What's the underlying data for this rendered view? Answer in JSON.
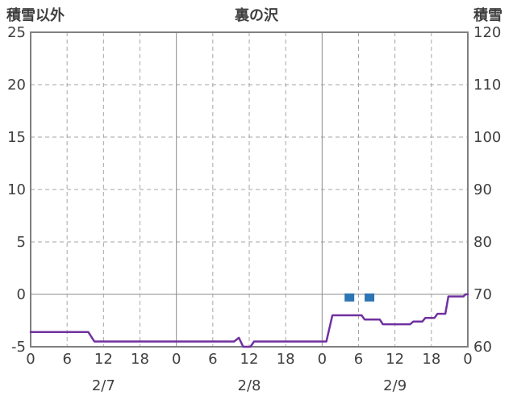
{
  "chart_data": {
    "type": "line",
    "title": "裏の沢",
    "left_axis": {
      "title": "積雪以外",
      "min": -5,
      "max": 25,
      "ticks": [
        25,
        20,
        15,
        10,
        5,
        0,
        -5
      ]
    },
    "right_axis": {
      "title": "積雪",
      "min": 60,
      "max": 120,
      "ticks": [
        120,
        110,
        100,
        90,
        80,
        70,
        60
      ]
    },
    "x_axis": {
      "total_hours": 72,
      "tick_hours": [
        0,
        6,
        12,
        18,
        24,
        30,
        36,
        42,
        48,
        54,
        60,
        66,
        72
      ],
      "tick_labels": [
        "0",
        "6",
        "12",
        "18",
        "0",
        "6",
        "12",
        "18",
        "0",
        "6",
        "12",
        "18",
        "0"
      ],
      "day_labels": [
        {
          "label": "2/7",
          "hour": 12
        },
        {
          "label": "2/8",
          "hour": 36
        },
        {
          "label": "2/9",
          "hour": 60
        }
      ],
      "solid_gridline_hours": [
        24,
        48
      ],
      "dashed_gridline_hours": [
        6,
        12,
        18,
        30,
        36,
        42,
        54,
        60,
        66
      ]
    },
    "y_gridlines": {
      "dashed_right_values": [
        110,
        100,
        90,
        80
      ],
      "solid_right_values": [
        70
      ]
    },
    "series": [
      {
        "name": "積雪",
        "axis": "right",
        "style": "line",
        "color": "#7030a0",
        "points": [
          [
            0,
            62.8
          ],
          [
            9.5,
            62.8
          ],
          [
            10.5,
            61.0
          ],
          [
            33.5,
            61.0
          ],
          [
            34.3,
            61.7
          ],
          [
            35.0,
            60.0
          ],
          [
            36.2,
            60.0
          ],
          [
            36.8,
            61.0
          ],
          [
            48.7,
            61.0
          ],
          [
            49.7,
            66.0
          ],
          [
            54.5,
            66.0
          ],
          [
            55.0,
            65.2
          ],
          [
            57.5,
            65.2
          ],
          [
            58.0,
            64.3
          ],
          [
            62.5,
            64.3
          ],
          [
            63.0,
            64.8
          ],
          [
            64.5,
            64.8
          ],
          [
            65.0,
            65.5
          ],
          [
            66.5,
            65.5
          ],
          [
            67.0,
            66.3
          ],
          [
            68.3,
            66.3
          ],
          [
            68.8,
            69.6
          ],
          [
            71.3,
            69.6
          ],
          [
            71.6,
            70.0
          ],
          [
            72,
            70.0
          ]
        ]
      },
      {
        "name": "積雪以外",
        "axis": "right",
        "style": "square",
        "color": "#2e75b6",
        "points": [
          [
            52.5,
            69.4
          ],
          [
            55.8,
            69.4
          ]
        ]
      }
    ],
    "colors": {
      "frame": "#808080",
      "grid_solid": "#8c8c8c",
      "grid_dashed": "#a6a6a6",
      "text": "#3f3f3f",
      "background": "#ffffff"
    }
  }
}
